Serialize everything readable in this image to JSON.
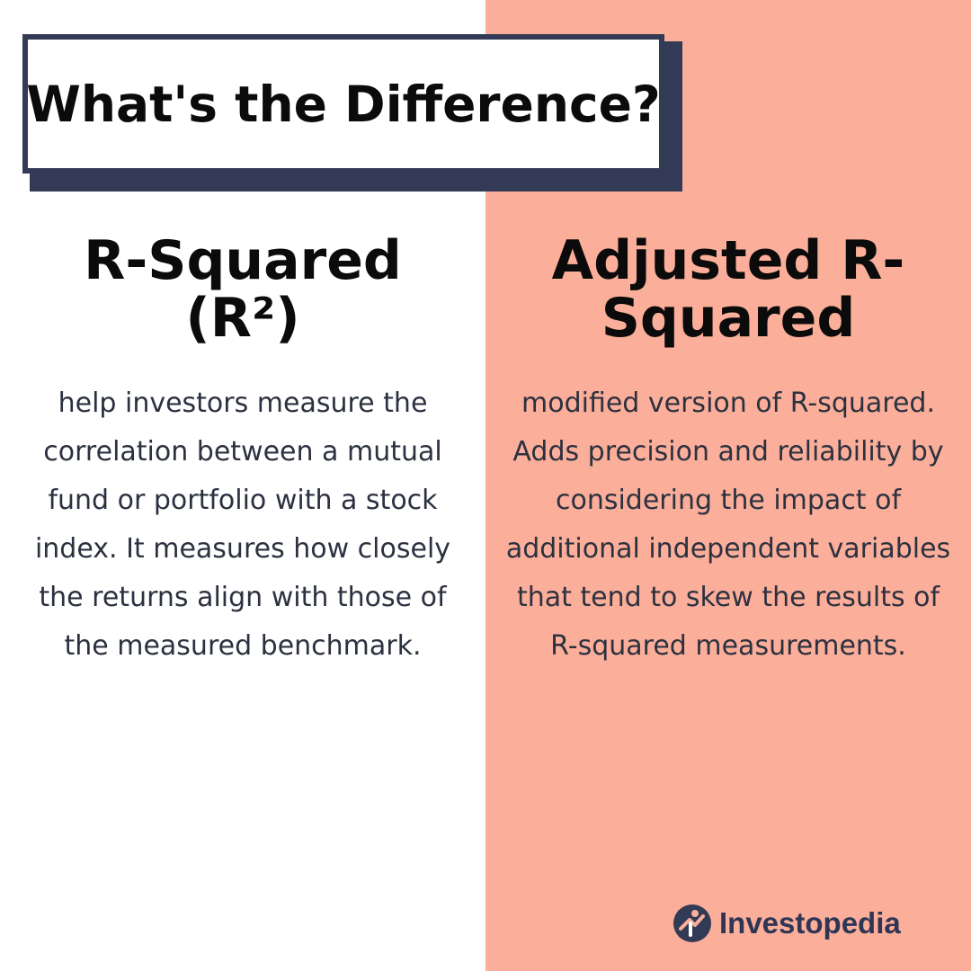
{
  "colors": {
    "right_panel_bg": "#fbae99",
    "navy": "#323a56",
    "text_dark": "#2c3140"
  },
  "title": "What's the Difference?",
  "left": {
    "heading": "R-Squared (R²)",
    "body": "help investors measure the correlation between a mutual fund or portfolio with a stock index. It measures how closely the returns align with those of the measured benchmark."
  },
  "right": {
    "heading": "Adjusted R-Squared",
    "body": "modified version of R-squared. Adds precision and reliability by considering the impact of additional independent variables that tend to skew the results of R-squared measurements."
  },
  "logo": {
    "text": "Investopedia",
    "icon": "investopedia-logo-icon"
  }
}
